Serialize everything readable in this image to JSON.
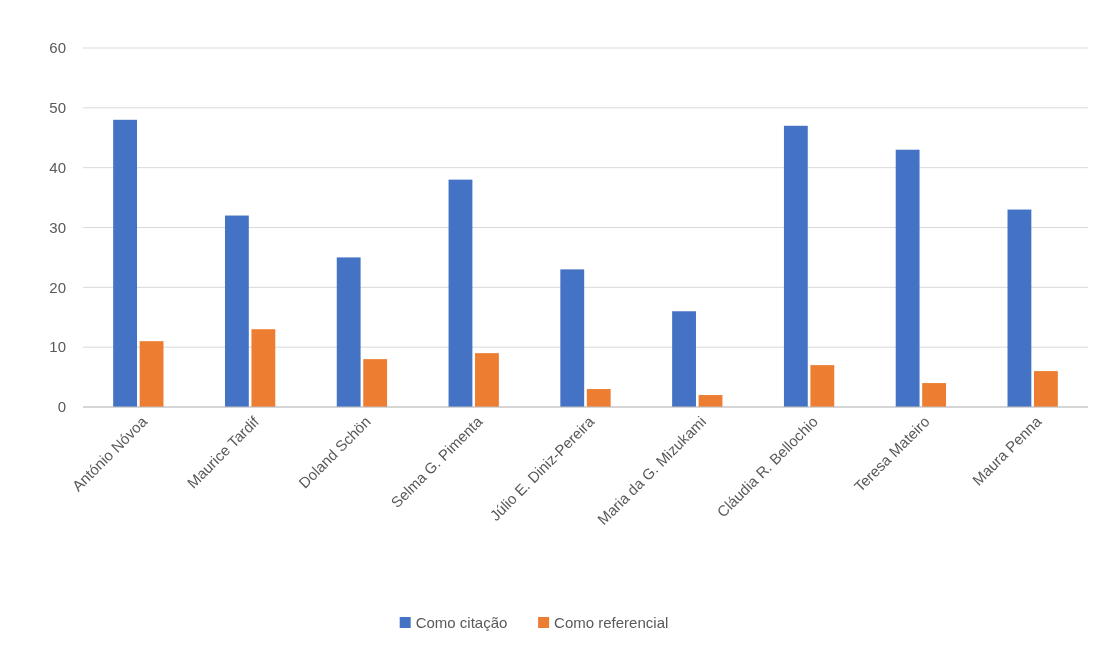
{
  "chart_data": {
    "type": "bar",
    "categories": [
      "António Nóvoa",
      "Maurice Tardif",
      "Doland Schön",
      "Selma G. Pimenta",
      "Júlio E. Diniz-Pereira",
      "Maria da G. Mizukami",
      "Cláudia R. Bellochio",
      "Teresa Mateiro",
      "Maura Penna"
    ],
    "series": [
      {
        "name": "Como citação",
        "color": "#4472c4",
        "values": [
          48,
          32,
          25,
          38,
          23,
          16,
          47,
          43,
          33
        ]
      },
      {
        "name": "Como referencial",
        "color": "#ed7d31",
        "values": [
          11,
          13,
          8,
          9,
          3,
          2,
          7,
          4,
          6
        ]
      }
    ],
    "ylim": [
      0,
      60
    ],
    "yticks": [
      0,
      10,
      20,
      30,
      40,
      50,
      60
    ],
    "grid": "y",
    "legend": "bottom"
  }
}
